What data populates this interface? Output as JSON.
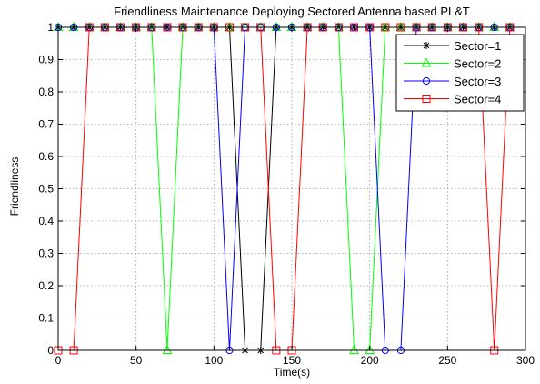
{
  "chart_data": {
    "type": "line",
    "title": "Friendliness Maintenance Deploying Sectored Antenna based PL&T",
    "xlabel": "Time(s)",
    "ylabel": "Friendliness",
    "xlim": [
      0,
      300
    ],
    "ylim": [
      0,
      1
    ],
    "xticks": [
      0,
      50,
      100,
      150,
      200,
      250,
      300
    ],
    "xtick_labels": [
      "0",
      "50",
      "100",
      "150",
      "200",
      "250",
      "300"
    ],
    "yticks": [
      0,
      0.1,
      0.2,
      0.3,
      0.4,
      0.5,
      0.6,
      0.7,
      0.8,
      0.9,
      1
    ],
    "ytick_labels": [
      "0",
      "0.1",
      "0.2",
      "0.3",
      "0.4",
      "0.5",
      "0.6",
      "0.7",
      "0.8",
      "0.9",
      "1"
    ],
    "grid": true,
    "legend_position": "top-right",
    "x": [
      0,
      10,
      20,
      30,
      40,
      50,
      60,
      70,
      80,
      90,
      100,
      110,
      120,
      130,
      140,
      150,
      160,
      170,
      180,
      190,
      200,
      210,
      220,
      230,
      240,
      250,
      260,
      270,
      280,
      290
    ],
    "series": [
      {
        "name": "Sector=1",
        "color": "#000000",
        "marker": "asterisk",
        "values": [
          1,
          1,
          1,
          1,
          1,
          1,
          1,
          1,
          1,
          1,
          1,
          1,
          0,
          0,
          1,
          1,
          1,
          1,
          1,
          1,
          1,
          1,
          1,
          1,
          1,
          1,
          1,
          1,
          1,
          1
        ]
      },
      {
        "name": "Sector=2",
        "color": "#00ff00",
        "marker": "triangle",
        "values": [
          1,
          1,
          1,
          1,
          1,
          1,
          1,
          0,
          1,
          1,
          1,
          1,
          1,
          1,
          1,
          1,
          1,
          1,
          1,
          0,
          0,
          1,
          1,
          1,
          1,
          1,
          1,
          1,
          1,
          1
        ]
      },
      {
        "name": "Sector=3",
        "color": "#0000ff",
        "marker": "circle",
        "values": [
          1,
          1,
          1,
          1,
          1,
          1,
          1,
          1,
          1,
          1,
          1,
          0,
          1,
          1,
          1,
          1,
          1,
          1,
          1,
          1,
          1,
          0,
          0,
          1,
          1,
          1,
          1,
          1,
          1,
          1
        ]
      },
      {
        "name": "Sector=4",
        "color": "#ff0000",
        "marker": "square",
        "values": [
          0,
          0,
          1,
          1,
          1,
          1,
          1,
          1,
          1,
          1,
          1,
          1,
          1,
          1,
          0,
          0,
          1,
          1,
          1,
          1,
          1,
          1,
          1,
          1,
          1,
          1,
          1,
          1,
          0,
          1
        ]
      }
    ]
  }
}
